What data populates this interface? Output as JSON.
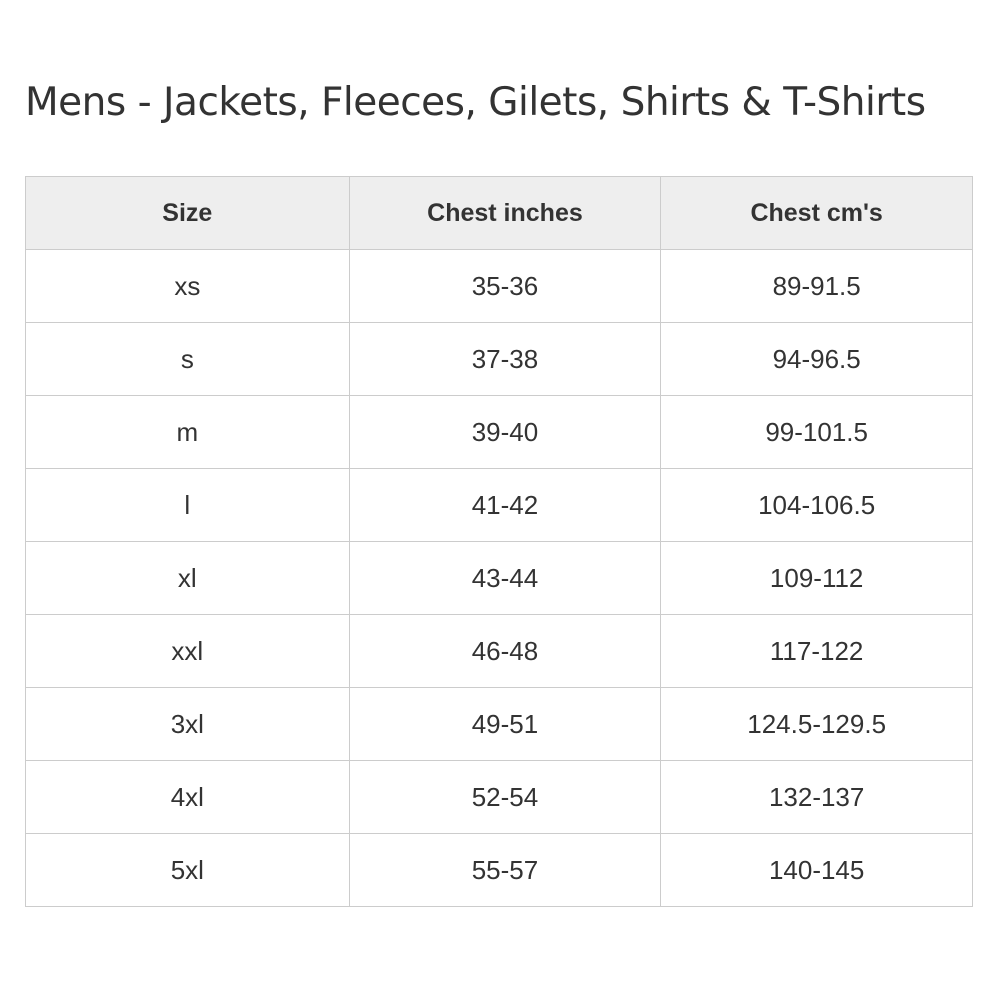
{
  "title": "Mens - Jackets, Fleeces, Gilets, Shirts & T-Shirts",
  "table": {
    "headers": [
      "Size",
      "Chest inches",
      "Chest cm's"
    ],
    "rows": [
      [
        "xs",
        "35-36",
        "89-91.5"
      ],
      [
        "s",
        "37-38",
        "94-96.5"
      ],
      [
        "m",
        "39-40",
        "99-101.5"
      ],
      [
        "l",
        "41-42",
        "104-106.5"
      ],
      [
        "xl",
        "43-44",
        "109-112"
      ],
      [
        "xxl",
        "46-48",
        "117-122"
      ],
      [
        "3xl",
        "49-51",
        "124.5-129.5"
      ],
      [
        "4xl",
        "52-54",
        "132-137"
      ],
      [
        "5xl",
        "55-57",
        "140-145"
      ]
    ]
  }
}
